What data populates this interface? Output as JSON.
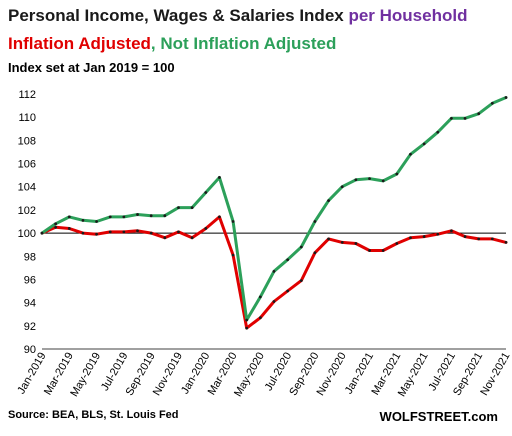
{
  "header": {
    "title_main": "Personal Income, Wages & Salaries Index ",
    "title_highlight": "per Household",
    "subtitle_red": "Inflation Adjusted",
    "subtitle_sep": ", ",
    "subtitle_green": "Not Inflation Adjusted",
    "note": "Index set at Jan 2019 = 100"
  },
  "footer": {
    "source": "Source: BEA, BLS, St. Louis Fed",
    "brand": "WOLFSTREET.com"
  },
  "colors": {
    "red": "#e00000",
    "green": "#2ca05a",
    "purple": "#7030a0",
    "marker": "#1a1a1a"
  },
  "chart_data": {
    "type": "line",
    "x": [
      "Jan-2019",
      "Feb-2019",
      "Mar-2019",
      "Apr-2019",
      "May-2019",
      "Jun-2019",
      "Jul-2019",
      "Aug-2019",
      "Sep-2019",
      "Oct-2019",
      "Nov-2019",
      "Dec-2019",
      "Jan-2020",
      "Feb-2020",
      "Mar-2020",
      "Apr-2020",
      "May-2020",
      "Jun-2020",
      "Jul-2020",
      "Aug-2020",
      "Sep-2020",
      "Oct-2020",
      "Nov-2020",
      "Dec-2020",
      "Jan-2021",
      "Feb-2021",
      "Mar-2021",
      "Apr-2021",
      "May-2021",
      "Jun-2021",
      "Jul-2021",
      "Aug-2021",
      "Sep-2021",
      "Oct-2021",
      "Nov-2021"
    ],
    "x_tick_labels": [
      "Jan-2019",
      "Mar-2019",
      "May-2019",
      "Jul-2019",
      "Sep-2019",
      "Nov-2019",
      "Jan-2020",
      "Mar-2020",
      "May-2020",
      "Jul-2020",
      "Sep-2020",
      "Nov-2020",
      "Jan-2021",
      "Mar-2021",
      "May-2021",
      "Jul-2021",
      "Sep-2021",
      "Nov-2021"
    ],
    "series": [
      {
        "name": "Inflation Adjusted",
        "color": "#e00000",
        "values": [
          100.0,
          100.5,
          100.4,
          100.0,
          99.9,
          100.1,
          100.1,
          100.2,
          100.0,
          99.6,
          100.1,
          99.6,
          100.4,
          101.4,
          98.1,
          91.8,
          92.7,
          94.1,
          95.0,
          95.9,
          98.3,
          99.5,
          99.2,
          99.1,
          98.5,
          98.5,
          99.1,
          99.6,
          99.7,
          99.9,
          100.2,
          99.7,
          99.5,
          99.5,
          99.2
        ]
      },
      {
        "name": "Not Inflation Adjusted",
        "color": "#2ca05a",
        "values": [
          100.0,
          100.8,
          101.4,
          101.1,
          101.0,
          101.4,
          101.4,
          101.6,
          101.5,
          101.5,
          102.2,
          102.2,
          103.5,
          104.8,
          101.0,
          92.5,
          94.5,
          96.7,
          97.7,
          98.8,
          101.0,
          102.8,
          104.0,
          104.6,
          104.7,
          104.5,
          105.1,
          106.8,
          107.7,
          108.7,
          109.9,
          109.9,
          110.3,
          111.2,
          111.7
        ]
      }
    ],
    "y_ticks": [
      90,
      92,
      94,
      96,
      98,
      100,
      102,
      104,
      106,
      108,
      110,
      112
    ],
    "ylim": [
      90,
      112
    ],
    "reference_line": 100,
    "grid": false,
    "legend": "none"
  }
}
